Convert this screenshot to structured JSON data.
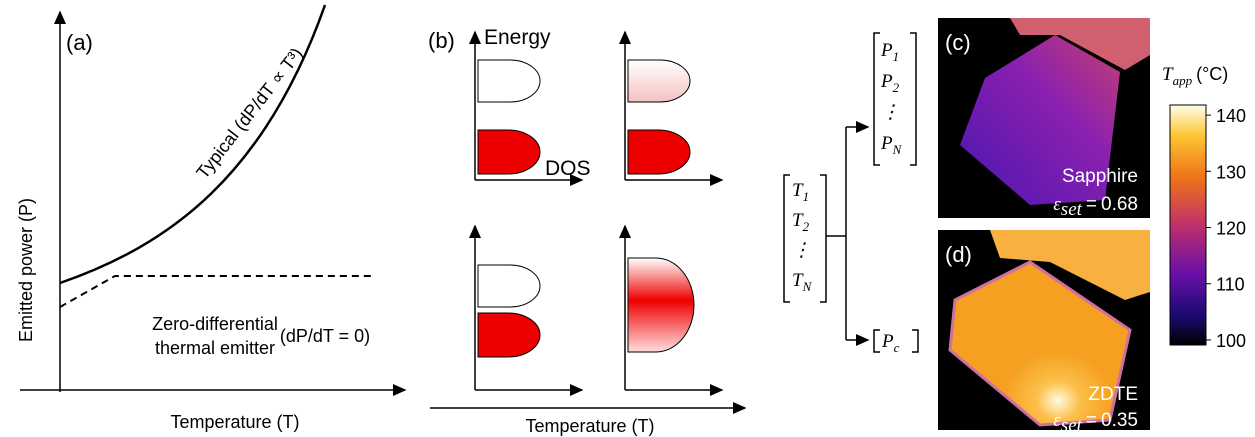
{
  "panel_a": {
    "label": "(a)",
    "y_label": "Emitted power (P)",
    "curve_label": "Typical (dP/dT ∝ T³)",
    "annotation": [
      "Zero-differential",
      "thermal emitter",
      "(dP/dT = 0)"
    ],
    "x_label": "Temperature (T)"
  },
  "panel_b": {
    "label": "(b)",
    "y_label": "Energy",
    "x_label_inner": "DOS",
    "x_label": "Temperature (T)"
  },
  "mapping": {
    "inputs": [
      {
        "base": "T",
        "sub": "1"
      },
      {
        "base": "T",
        "sub": "2"
      },
      {
        "base": "⋮",
        "sub": ""
      },
      {
        "base": "T",
        "sub": "N"
      }
    ],
    "outputs": [
      {
        "base": "P",
        "sub": "1"
      },
      {
        "base": "P",
        "sub": "2"
      },
      {
        "base": "⋮",
        "sub": ""
      },
      {
        "base": "P",
        "sub": "N"
      }
    ],
    "constant": {
      "base": "P",
      "sub": "c"
    }
  },
  "panel_c": {
    "label": "(c)",
    "material": "Sapphire",
    "symbol": "ε",
    "subscript": "set",
    "relation": "=",
    "emissivity": 0.68
  },
  "panel_d": {
    "label": "(d)",
    "material": "ZDTE",
    "symbol": "ε",
    "subscript": "set",
    "relation": "=",
    "emissivity": 0.35
  },
  "colorbar": {
    "title": "T",
    "subscript": "app",
    "unit": "(°C)",
    "ylim": [
      99.1,
      141.8
    ],
    "ticks": [
      100,
      110,
      120,
      130,
      140
    ]
  }
}
